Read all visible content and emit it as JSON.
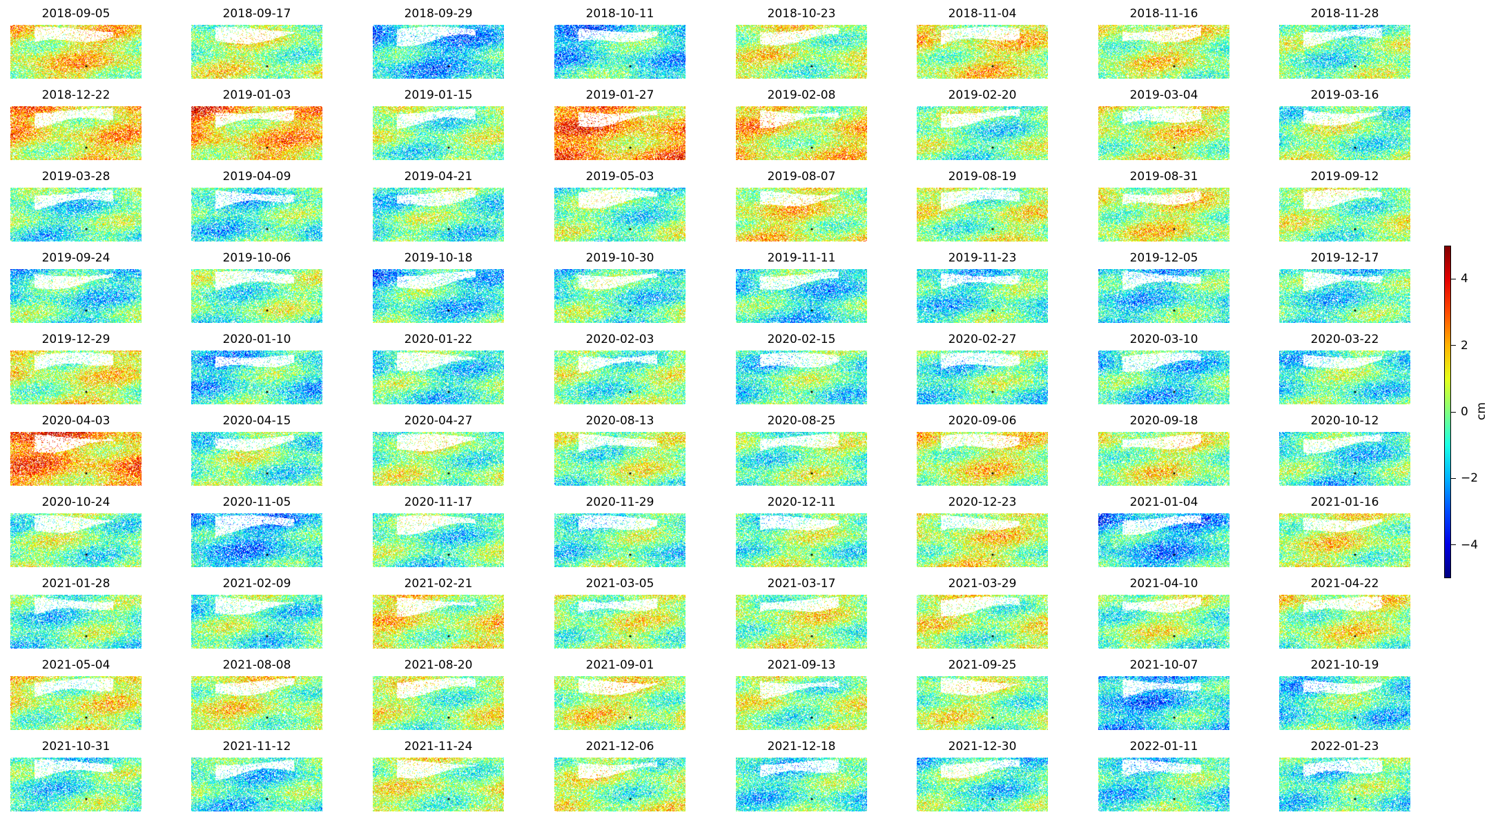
{
  "chart_data": {
    "type": "heatmap",
    "description_note": "",
    "panels": [
      "2018-09-05",
      "2018-09-17",
      "2018-09-29",
      "2018-10-11",
      "2018-10-23",
      "2018-11-04",
      "2018-11-16",
      "2018-11-28",
      "2018-12-22",
      "2019-01-03",
      "2019-01-15",
      "2019-01-27",
      "2019-02-08",
      "2019-02-20",
      "2019-03-04",
      "2019-03-16",
      "2019-03-28",
      "2019-04-09",
      "2019-04-21",
      "2019-05-03",
      "2019-08-07",
      "2019-08-19",
      "2019-08-31",
      "2019-09-12",
      "2019-09-24",
      "2019-10-06",
      "2019-10-18",
      "2019-10-30",
      "2019-11-11",
      "2019-11-23",
      "2019-12-05",
      "2019-12-17",
      "2019-12-29",
      "2020-01-10",
      "2020-01-22",
      "2020-02-03",
      "2020-02-15",
      "2020-02-27",
      "2020-03-10",
      "2020-03-22",
      "2020-04-03",
      "2020-04-15",
      "2020-04-27",
      "2020-08-13",
      "2020-08-25",
      "2020-09-06",
      "2020-09-18",
      "2020-10-12",
      "2020-10-24",
      "2020-11-05",
      "2020-11-17",
      "2020-11-29",
      "2020-12-11",
      "2020-12-23",
      "2021-01-04",
      "2021-01-16",
      "2021-01-28",
      "2021-02-09",
      "2021-02-21",
      "2021-03-05",
      "2021-03-17",
      "2021-03-29",
      "2021-04-10",
      "2021-04-22",
      "2021-05-04",
      "2021-08-08",
      "2021-08-20",
      "2021-09-01",
      "2021-09-13",
      "2021-09-25",
      "2021-10-07",
      "2021-10-19",
      "2021-10-31",
      "2021-11-12",
      "2021-11-24",
      "2021-12-06",
      "2021-12-18",
      "2021-12-30",
      "2022-01-11",
      "2022-01-23"
    ],
    "grid": {
      "rows": 10,
      "cols": 8
    },
    "colorbar": {
      "colormap": "jet",
      "vmin": -5,
      "vmax": 5,
      "ticks": [
        4,
        2,
        0,
        -2,
        -4
      ],
      "tick_labels": [
        "4",
        "2",
        "0",
        "−2",
        "−4"
      ],
      "unit": "cm"
    },
    "panel_mean_bias": [
      1,
      0.3,
      -1.5,
      -1.2,
      0.4,
      0.8,
      0.5,
      -0.3,
      1.2,
      1.5,
      -0.2,
      2,
      1,
      -0.3,
      0.6,
      -0.2,
      -0.6,
      -0.8,
      -0.5,
      -0.3,
      0.8,
      0.2,
      0.6,
      0,
      -0.8,
      -0.3,
      -1,
      -0.6,
      -1,
      -0.8,
      -1,
      -0.8,
      0.6,
      -1,
      -0.7,
      -0.2,
      -0.6,
      -0.6,
      -1,
      -0.6,
      2,
      -0.3,
      0,
      0,
      -0.2,
      0.7,
      0.4,
      -0.8,
      -0.2,
      -1.5,
      -0.5,
      -0.5,
      -0.2,
      0.6,
      -1.5,
      0.5,
      -0.6,
      -0.5,
      0.7,
      0.2,
      0.3,
      0.3,
      0,
      0.4,
      0.5,
      0.5,
      0.2,
      0.5,
      0.1,
      0.2,
      -1.5,
      -0.8,
      -0.6,
      -0.8,
      0.3,
      0.2,
      -0.8,
      -0.6,
      -0.8,
      -0.6
    ]
  }
}
